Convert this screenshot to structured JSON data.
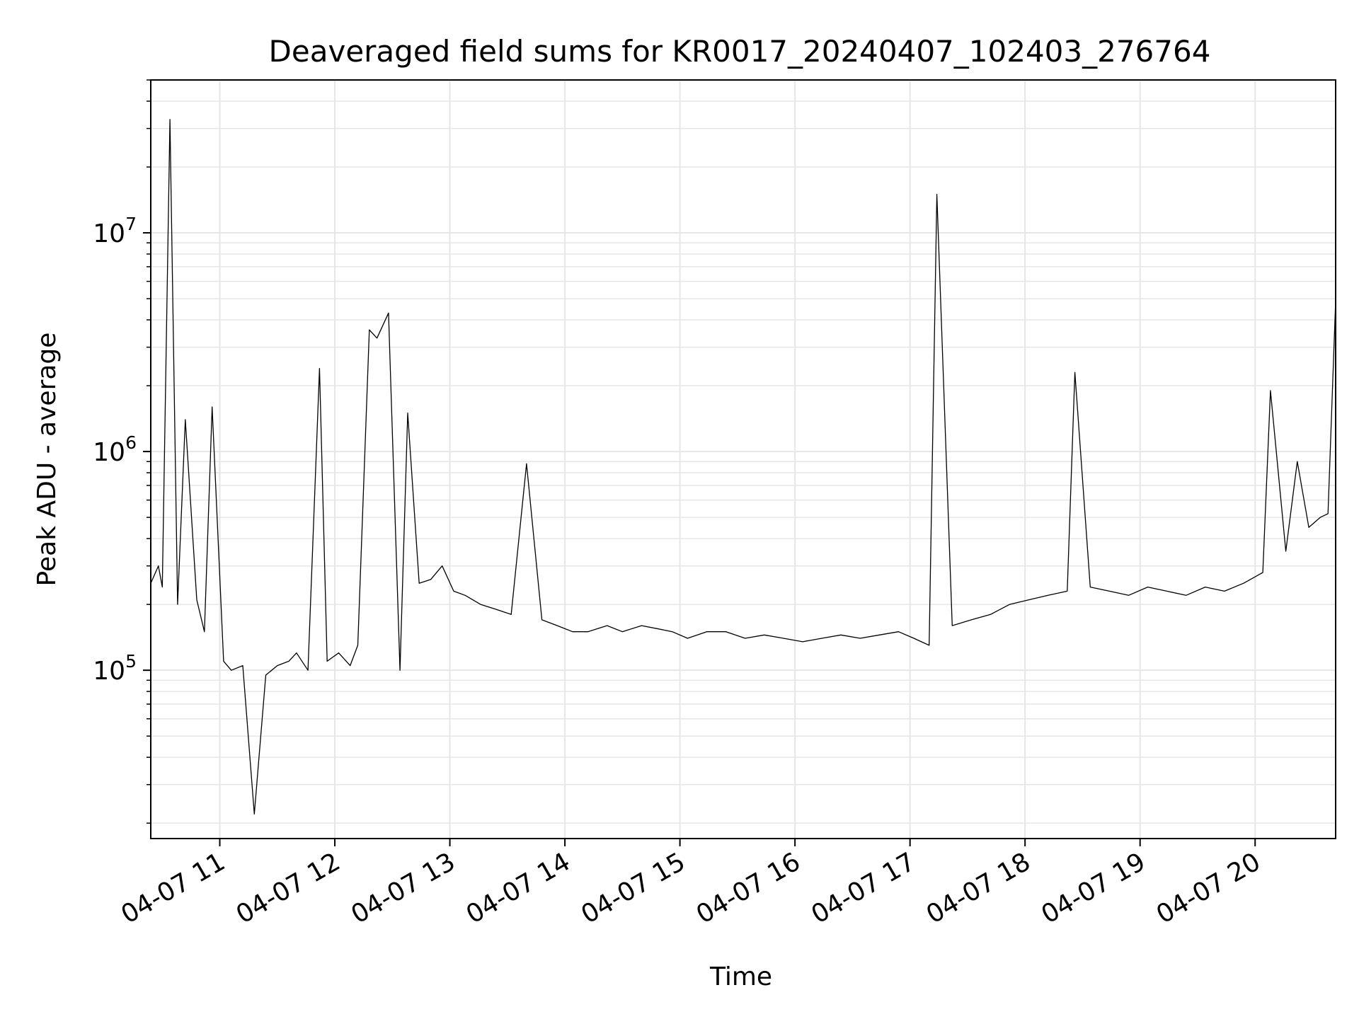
{
  "chart_data": {
    "type": "line",
    "title": "Deaveraged field sums for KR0017_20240407_102403_276764",
    "xlabel": "Time",
    "ylabel": "Peak ADU - average",
    "y_scale": "log",
    "ylim": [
      17000,
      50000000
    ],
    "xlim": [
      "2024-04-07 10:24",
      "2024-04-07 20:42"
    ],
    "grid": true,
    "grid_minor": true,
    "line_color": "#000000",
    "grid_color": "#e6e6e6",
    "x_ticks": [
      {
        "value": "2024-04-07 11:00",
        "label": "04-07 11"
      },
      {
        "value": "2024-04-07 12:00",
        "label": "04-07 12"
      },
      {
        "value": "2024-04-07 13:00",
        "label": "04-07 13"
      },
      {
        "value": "2024-04-07 14:00",
        "label": "04-07 14"
      },
      {
        "value": "2024-04-07 15:00",
        "label": "04-07 15"
      },
      {
        "value": "2024-04-07 16:00",
        "label": "04-07 16"
      },
      {
        "value": "2024-04-07 17:00",
        "label": "04-07 17"
      },
      {
        "value": "2024-04-07 18:00",
        "label": "04-07 18"
      },
      {
        "value": "2024-04-07 19:00",
        "label": "04-07 19"
      },
      {
        "value": "2024-04-07 20:00",
        "label": "04-07 20"
      }
    ],
    "y_ticks": [
      {
        "value": 100000,
        "base": "10",
        "exp": "5"
      },
      {
        "value": 1000000,
        "base": "10",
        "exp": "6"
      },
      {
        "value": 10000000,
        "base": "10",
        "exp": "7"
      }
    ],
    "series": [
      {
        "values_description_note": "",
        "x": [
          "2024-04-07 10:24",
          "2024-04-07 10:28",
          "2024-04-07 10:30",
          "2024-04-07 10:34",
          "2024-04-07 10:38",
          "2024-04-07 10:42",
          "2024-04-07 10:48",
          "2024-04-07 10:52",
          "2024-04-07 10:56",
          "2024-04-07 11:02",
          "2024-04-07 11:06",
          "2024-04-07 11:12",
          "2024-04-07 11:18",
          "2024-04-07 11:24",
          "2024-04-07 11:30",
          "2024-04-07 11:36",
          "2024-04-07 11:40",
          "2024-04-07 11:46",
          "2024-04-07 11:52",
          "2024-04-07 11:56",
          "2024-04-07 12:02",
          "2024-04-07 12:08",
          "2024-04-07 12:12",
          "2024-04-07 12:18",
          "2024-04-07 12:22",
          "2024-04-07 12:28",
          "2024-04-07 12:34",
          "2024-04-07 12:38",
          "2024-04-07 12:44",
          "2024-04-07 12:50",
          "2024-04-07 12:56",
          "2024-04-07 13:02",
          "2024-04-07 13:08",
          "2024-04-07 13:16",
          "2024-04-07 13:24",
          "2024-04-07 13:32",
          "2024-04-07 13:40",
          "2024-04-07 13:48",
          "2024-04-07 13:56",
          "2024-04-07 14:04",
          "2024-04-07 14:12",
          "2024-04-07 14:22",
          "2024-04-07 14:30",
          "2024-04-07 14:40",
          "2024-04-07 14:48",
          "2024-04-07 14:56",
          "2024-04-07 15:04",
          "2024-04-07 15:14",
          "2024-04-07 15:24",
          "2024-04-07 15:34",
          "2024-04-07 15:44",
          "2024-04-07 15:54",
          "2024-04-07 16:04",
          "2024-04-07 16:14",
          "2024-04-07 16:24",
          "2024-04-07 16:34",
          "2024-04-07 16:44",
          "2024-04-07 16:54",
          "2024-04-07 17:02",
          "2024-04-07 17:10",
          "2024-04-07 17:14",
          "2024-04-07 17:22",
          "2024-04-07 17:32",
          "2024-04-07 17:42",
          "2024-04-07 17:52",
          "2024-04-07 18:02",
          "2024-04-07 18:12",
          "2024-04-07 18:22",
          "2024-04-07 18:26",
          "2024-04-07 18:34",
          "2024-04-07 18:44",
          "2024-04-07 18:54",
          "2024-04-07 19:04",
          "2024-04-07 19:14",
          "2024-04-07 19:24",
          "2024-04-07 19:34",
          "2024-04-07 19:44",
          "2024-04-07 19:54",
          "2024-04-07 20:04",
          "2024-04-07 20:08",
          "2024-04-07 20:16",
          "2024-04-07 20:22",
          "2024-04-07 20:28",
          "2024-04-07 20:34",
          "2024-04-07 20:38",
          "2024-04-07 20:42"
        ],
        "values": [
          250000,
          300000,
          240000,
          33000000,
          200000,
          1400000,
          210000,
          150000,
          1600000,
          110000,
          100000,
          105000,
          22000,
          95000,
          105000,
          110000,
          120000,
          100000,
          2400000,
          110000,
          120000,
          105000,
          130000,
          3600000,
          3300000,
          4300000,
          100000,
          1500000,
          250000,
          260000,
          300000,
          230000,
          220000,
          200000,
          190000,
          180000,
          880000,
          170000,
          160000,
          150000,
          150000,
          160000,
          150000,
          160000,
          155000,
          150000,
          140000,
          150000,
          150000,
          140000,
          145000,
          140000,
          135000,
          140000,
          145000,
          140000,
          145000,
          150000,
          140000,
          130000,
          15000000,
          160000,
          170000,
          180000,
          200000,
          210000,
          220000,
          230000,
          2300000,
          240000,
          230000,
          220000,
          240000,
          230000,
          220000,
          240000,
          230000,
          250000,
          280000,
          1900000,
          350000,
          900000,
          450000,
          500000,
          520000,
          4900000
        ],
        "y_min_envelope": [],
        "range_note": ""
      }
    ]
  }
}
